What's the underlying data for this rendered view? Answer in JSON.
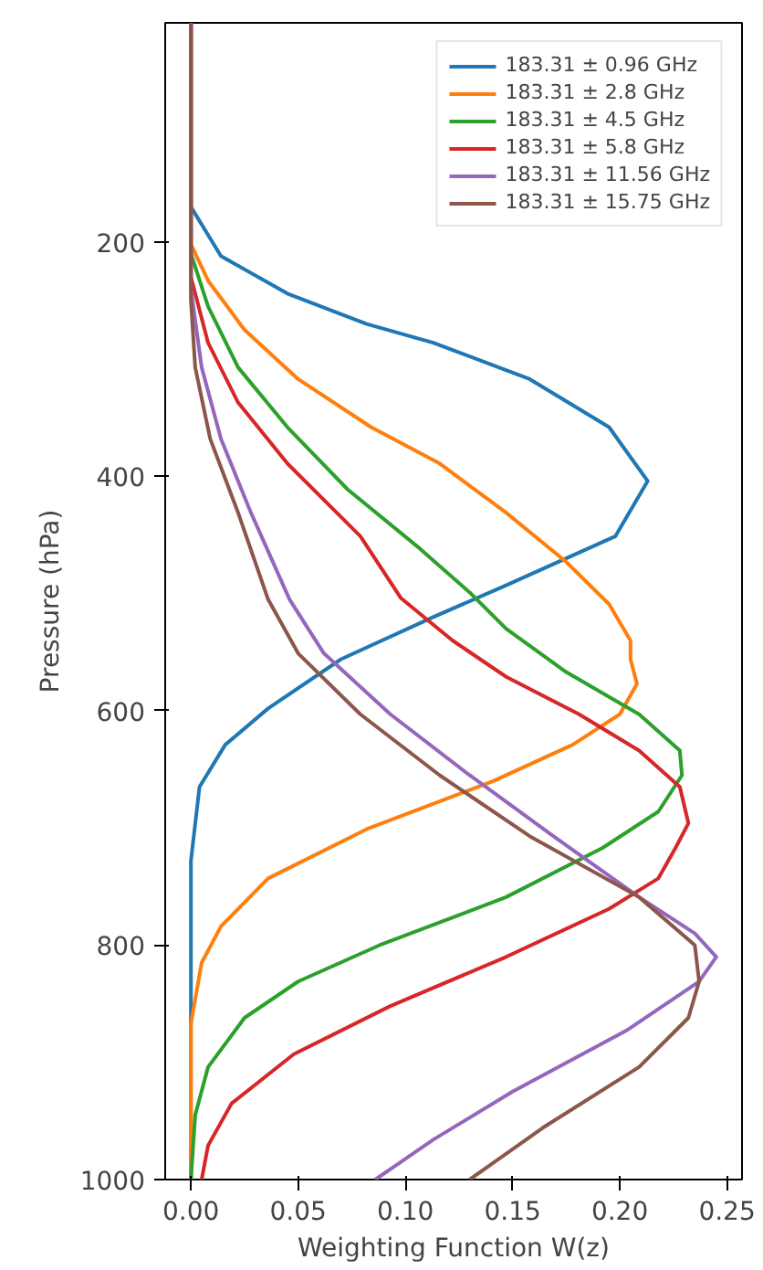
{
  "chart_data": {
    "type": "line",
    "xlabel": "Weighting Function W(z)",
    "ylabel": "Pressure (hPa)",
    "xlim": [
      -0.012,
      0.257
    ],
    "ylim": [
      1000,
      13
    ],
    "xticks": [
      {
        "value": 0,
        "label": "0.00"
      },
      {
        "value": 0.05,
        "label": "0.05"
      },
      {
        "value": 0.1,
        "label": "0.10"
      },
      {
        "value": 0.15,
        "label": "0.15"
      },
      {
        "value": 0.2,
        "label": "0.20"
      },
      {
        "value": 0.25,
        "label": "0.25"
      }
    ],
    "yticks": [
      200,
      400,
      600,
      800,
      1000
    ],
    "grid": false,
    "legend": "top right",
    "line_style": "solid",
    "marker": "none",
    "series": [
      {
        "name": "183.31 ± 0.96 GHz",
        "color": "#1f77b4",
        "x": [
          0,
          0,
          0.014,
          0.045,
          0.082,
          0.113,
          0.158,
          0.195,
          0.213,
          0.198,
          0.147,
          0.113,
          0.07,
          0.036,
          0.016,
          0.004,
          0,
          0
        ],
        "values": [
          13,
          170,
          212,
          244,
          270,
          286,
          317,
          358,
          404,
          451,
          493,
          520,
          556,
          598,
          629,
          665,
          728,
          1000
        ]
      },
      {
        "name": "183.31 ± 2.8 GHz",
        "color": "#ff7f0e",
        "x": [
          0,
          0,
          0.008,
          0.025,
          0.05,
          0.084,
          0.116,
          0.147,
          0.175,
          0.195,
          0.205,
          0.205,
          0.208,
          0.2,
          0.178,
          0.141,
          0.082,
          0.036,
          0.014,
          0.005,
          0,
          0
        ],
        "values": [
          13,
          202,
          233,
          275,
          317,
          358,
          389,
          431,
          473,
          509,
          540,
          556,
          577,
          603,
          629,
          660,
          701,
          743,
          784,
          815,
          867,
          1000
        ]
      },
      {
        "name": "183.31 ± 4.5 GHz",
        "color": "#2ca02c",
        "x": [
          0,
          0,
          0.008,
          0.022,
          0.045,
          0.073,
          0.107,
          0.13,
          0.147,
          0.175,
          0.209,
          0.228,
          0.229,
          0.218,
          0.192,
          0.147,
          0.088,
          0.05,
          0.025,
          0.008,
          0.002,
          0
        ],
        "values": [
          13,
          210,
          255,
          307,
          358,
          411,
          462,
          499,
          530,
          567,
          603,
          634,
          655,
          686,
          717,
          759,
          800,
          831,
          862,
          904,
          945,
          1000
        ]
      },
      {
        "name": "183.31 ± 5.8 GHz",
        "color": "#d62728",
        "x": [
          0,
          0,
          0.008,
          0.022,
          0.045,
          0.079,
          0.098,
          0.122,
          0.147,
          0.181,
          0.209,
          0.228,
          0.232,
          0.226,
          0.218,
          0.195,
          0.147,
          0.093,
          0.048,
          0.019,
          0.008,
          0.005
        ],
        "values": [
          13,
          230,
          286,
          337,
          389,
          451,
          504,
          540,
          571,
          603,
          634,
          665,
          696,
          717,
          743,
          769,
          810,
          852,
          893,
          935,
          971,
          1000
        ]
      },
      {
        "name": "183.31 ± 11.56 GHz",
        "color": "#9467bd",
        "x": [
          0,
          0,
          0.005,
          0.014,
          0.028,
          0.046,
          0.062,
          0.093,
          0.13,
          0.169,
          0.209,
          0.235,
          0.245,
          0.237,
          0.203,
          0.15,
          0.113,
          0.086
        ],
        "values": [
          13,
          240,
          307,
          368,
          431,
          505,
          551,
          603,
          655,
          707,
          759,
          790,
          810,
          831,
          873,
          925,
          966,
          1000
        ]
      },
      {
        "name": "183.31 ± 15.75 GHz",
        "color": "#8c564b",
        "x": [
          0,
          0,
          0.002,
          0.009,
          0.022,
          0.036,
          0.05,
          0.079,
          0.116,
          0.158,
          0.209,
          0.235,
          0.237,
          0.232,
          0.209,
          0.164,
          0.13
        ],
        "values": [
          13,
          250,
          307,
          368,
          431,
          505,
          551,
          603,
          655,
          707,
          759,
          800,
          831,
          862,
          904,
          956,
          1000
        ]
      }
    ]
  }
}
